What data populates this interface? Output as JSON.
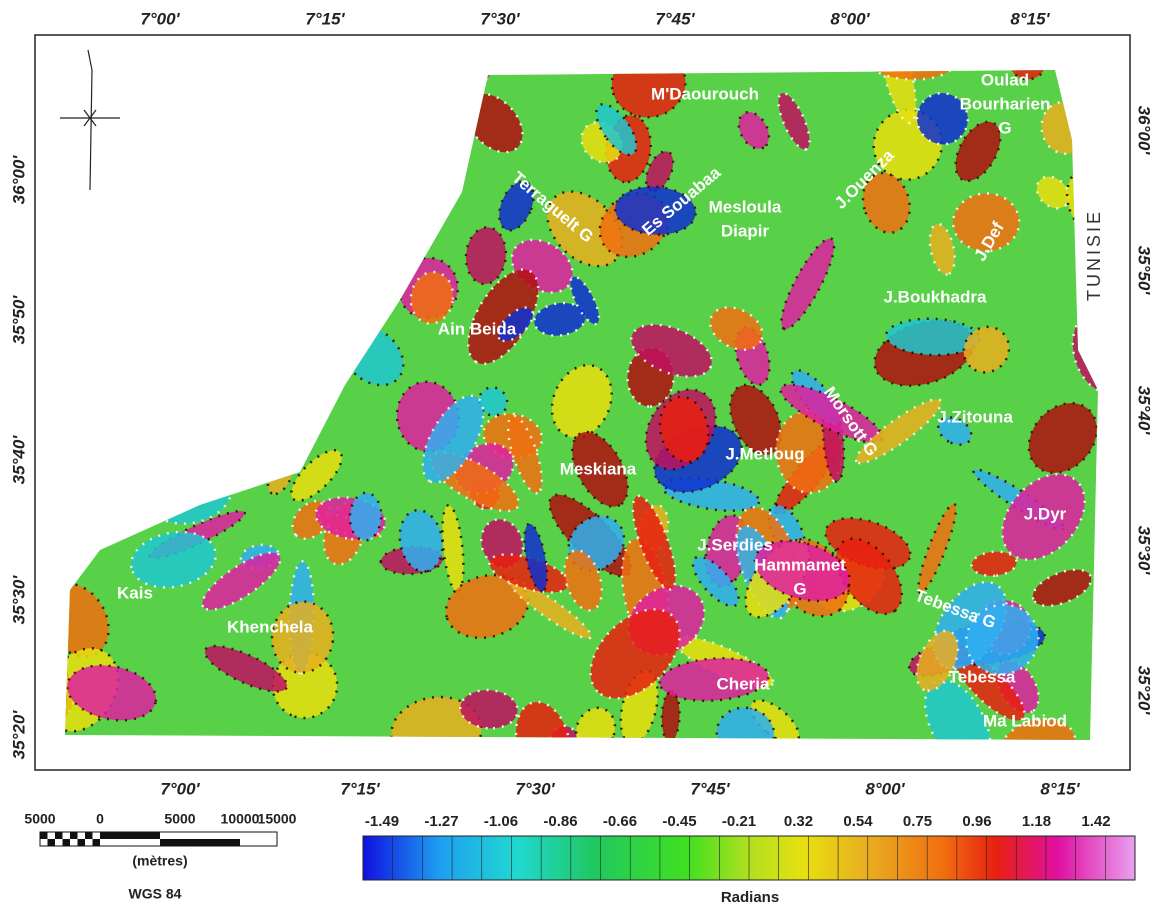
{
  "frame": {
    "top_labels": [
      "7°00'",
      "7°15'",
      "7°30'",
      "7°45'",
      "8°00'",
      "8°15'"
    ],
    "bottom_labels": [
      "7°00'",
      "7°15'",
      "7°30'",
      "7°45'",
      "8°00'",
      "8°15'"
    ],
    "left_labels": [
      "36°00'",
      "35°50'",
      "35°40'",
      "35°30'",
      "35°20'"
    ],
    "right_labels": [
      "36°00'",
      "35°50'",
      "35°40'",
      "35°30'",
      "35°20'"
    ]
  },
  "places": [
    {
      "lines": [
        "M'Daourouch"
      ]
    },
    {
      "lines": [
        "Oulad",
        "Bourharien",
        "G"
      ]
    },
    {
      "lines": [
        "Terraguelt G"
      ]
    },
    {
      "lines": [
        "Es Souabaa"
      ]
    },
    {
      "lines": [
        "Mesloula",
        "Diapir"
      ]
    },
    {
      "lines": [
        "J.Ouenza"
      ]
    },
    {
      "lines": [
        "J.Def"
      ]
    },
    {
      "lines": [
        "J.Boukhadra"
      ]
    },
    {
      "lines": [
        "Ain Beida"
      ]
    },
    {
      "lines": [
        "Morsott G"
      ]
    },
    {
      "lines": [
        "J.Zitouna"
      ]
    },
    {
      "lines": [
        "J.Metloug"
      ]
    },
    {
      "lines": [
        "Meskiana"
      ]
    },
    {
      "lines": [
        "J.Dyr"
      ]
    },
    {
      "lines": [
        "J.Serdies"
      ]
    },
    {
      "lines": [
        "Hammamet",
        "G"
      ]
    },
    {
      "lines": [
        "Tebessa G"
      ]
    },
    {
      "lines": [
        "Kais"
      ]
    },
    {
      "lines": [
        "Khenchela"
      ]
    },
    {
      "lines": [
        "Cheria"
      ]
    },
    {
      "lines": [
        "Tebessa"
      ]
    },
    {
      "lines": [
        "Ma Labiod"
      ]
    }
  ],
  "country": "TUNISIE",
  "scale_bar": {
    "labels": [
      "5000",
      "0",
      "5000",
      "10000",
      "15000"
    ],
    "unit": "(mètres)",
    "datum": "WGS 84"
  },
  "colorbar": {
    "ticks": [
      "-1.49",
      "-1.27",
      "-1.06",
      "-0.86",
      "-0.66",
      "-0.45",
      "-0.21",
      "0.32",
      "0.54",
      "0.75",
      "0.96",
      "1.18",
      "1.42"
    ],
    "title": "Radians"
  }
}
